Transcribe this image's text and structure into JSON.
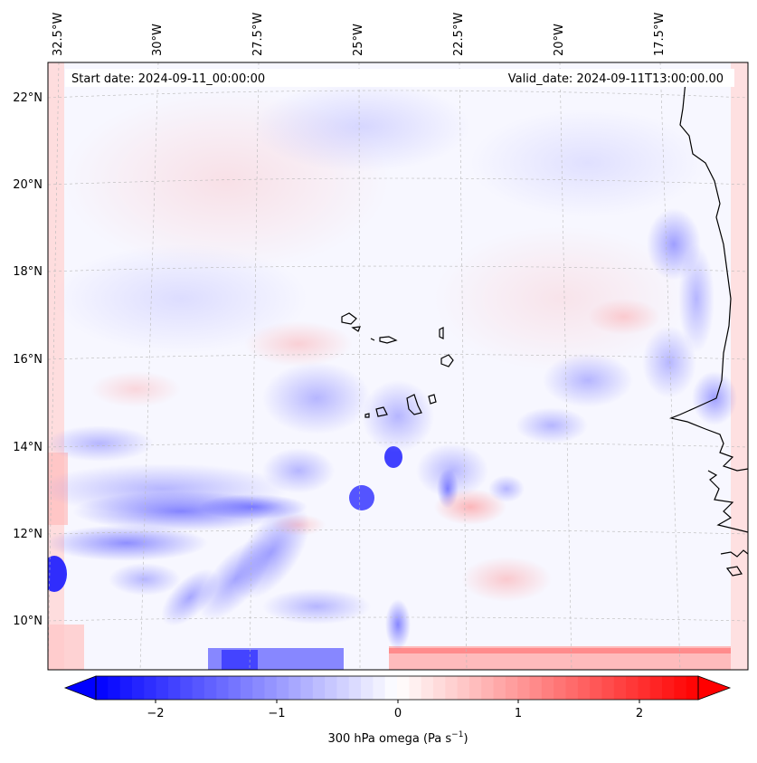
{
  "map": {
    "start_date_label": "Start date: 2024-09-11_00:00:00",
    "valid_date_label": "Valid_date: 2024-09-11T13:00:00.00",
    "lon_labels": [
      "32.5°W",
      "30°W",
      "27.5°W",
      "25°W",
      "22.5°W",
      "20°W",
      "17.5°W"
    ],
    "lat_labels": [
      "22°N",
      "20°N",
      "18°N",
      "16°N",
      "14°N",
      "12°N",
      "10°N"
    ]
  },
  "colorbar": {
    "label": "300 hPa omega (Pa s",
    "label_sup": "−1",
    "label_end": ")",
    "ticks": [
      "−2",
      "−1",
      "0",
      "1",
      "2"
    ],
    "min": -2.7,
    "max": 2.7,
    "colors": {
      "negative": "#0000ff",
      "zero": "#ffffff",
      "positive": "#ff0000"
    }
  }
}
